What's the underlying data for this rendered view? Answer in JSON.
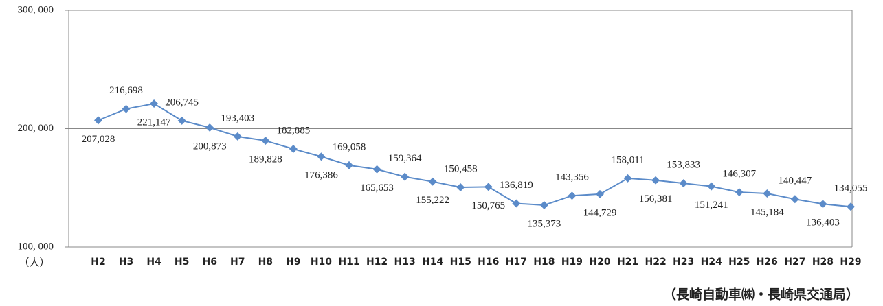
{
  "chart_data": {
    "type": "line",
    "y_label": "（人）",
    "source": "（長崎自動車㈱・長崎県交通局）",
    "categories": [
      "H2",
      "H3",
      "H4",
      "H5",
      "H6",
      "H7",
      "H8",
      "H9",
      "H10",
      "H11",
      "H12",
      "H13",
      "H14",
      "H15",
      "H16",
      "H17",
      "H18",
      "H19",
      "H20",
      "H21",
      "H22",
      "H23",
      "H24",
      "H25",
      "H26",
      "H27",
      "H28",
      "H29"
    ],
    "series": [
      {
        "name": null,
        "color": "#5b8bc9",
        "values": [
          207028,
          216698,
          221147,
          206745,
          200873,
          193403,
          189828,
          182885,
          176386,
          169058,
          165653,
          159364,
          155222,
          150458,
          150765,
          136819,
          135373,
          143356,
          144729,
          158011,
          156381,
          153833,
          151241,
          146307,
          145184,
          140447,
          136403,
          134055
        ],
        "value_labels": [
          "207,028",
          "216,698",
          "221,147",
          "206,745",
          "200,873",
          "193,403",
          "189,828",
          "182,885",
          "176,386",
          "169,058",
          "165,653",
          "159,364",
          "155,222",
          "150,458",
          "150,765",
          "136,819",
          "135,373",
          "143,356",
          "144,729",
          "158,011",
          "156,381",
          "153,833",
          "151,241",
          "146,307",
          "145,184",
          "140,447",
          "136,403",
          "134,055"
        ]
      }
    ],
    "ylim": [
      100000,
      300000
    ],
    "yticks": [
      {
        "value": 100000,
        "label": "100, 000"
      },
      {
        "value": 200000,
        "label": "200, 000"
      },
      {
        "value": 300000,
        "label": "300, 000"
      }
    ],
    "grid": true
  }
}
